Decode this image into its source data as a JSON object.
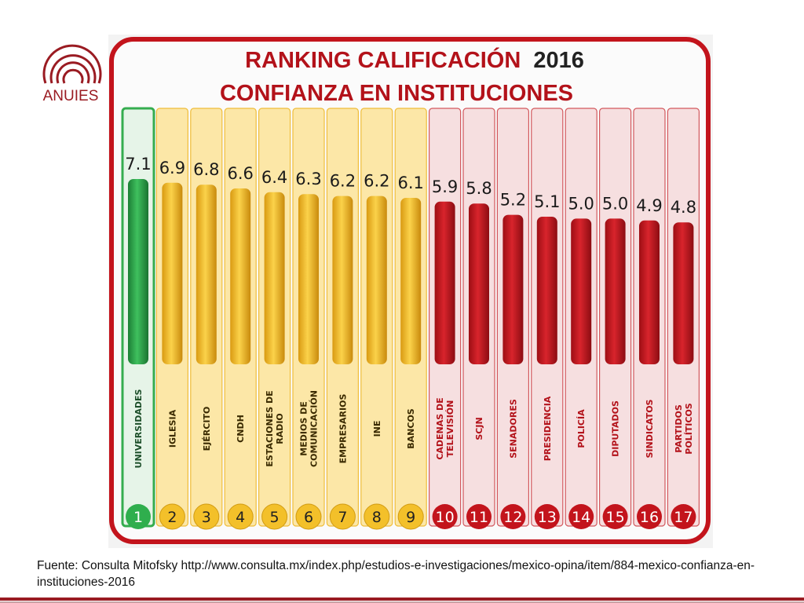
{
  "logo": {
    "text": "ANUIES",
    "color": "#9a1b22"
  },
  "source_text": "Fuente: Consulta Mitofsky http://www.consulta.mx/index.php/estudios-e-investigaciones/mexico-opina/item/884-mexico-confianza-en-instituciones-2016",
  "colors": {
    "green": "#2fae4d",
    "yellow": "#f3c02a",
    "red": "#c3141c",
    "frame": "#c3141c"
  },
  "chart_data": {
    "type": "bar",
    "title_line1": "RANKING CALIFICACIÓN",
    "title_year": "2016",
    "title_line2": "CONFIANZA EN INSTITUCIONES",
    "categories": [
      [
        "UNIVERSIDADES"
      ],
      [
        "IGLESIA"
      ],
      [
        "EJÉRCITO"
      ],
      [
        "CNDH"
      ],
      [
        "ESTACIONES DE",
        "RADIO"
      ],
      [
        "MEDIOS DE",
        "COMUNICACIÓN"
      ],
      [
        "EMPRESARIOS"
      ],
      [
        "INE"
      ],
      [
        "BANCOS"
      ],
      [
        "CADENAS DE",
        "TELEVISIÓN"
      ],
      [
        "SCJN"
      ],
      [
        "SENADORES"
      ],
      [
        "PRESIDENCIA"
      ],
      [
        "POLICÍA"
      ],
      [
        "DIPUTADOS"
      ],
      [
        "SINDICATOS"
      ],
      [
        "PARTIDOS",
        "POLÍTICOS"
      ]
    ],
    "values": [
      7.1,
      6.9,
      6.8,
      6.6,
      6.4,
      6.3,
      6.2,
      6.2,
      6.1,
      5.9,
      5.8,
      5.2,
      5.1,
      5.0,
      5.0,
      4.9,
      4.8
    ],
    "value_labels": [
      "7.1",
      "6.9",
      "6.8",
      "6.6",
      "6.4",
      "6.3",
      "6.2",
      "6.2",
      "6.1",
      "5.9",
      "5.8",
      "5.2",
      "5.1",
      "5.0",
      "5.0",
      "4.9",
      "4.8"
    ],
    "ranks": [
      "1",
      "2",
      "3",
      "4",
      "5",
      "6",
      "7",
      "8",
      "9",
      "10",
      "11",
      "12",
      "13",
      "14",
      "15",
      "16",
      "17"
    ],
    "groups": [
      "green",
      "yellow",
      "yellow",
      "yellow",
      "yellow",
      "yellow",
      "yellow",
      "yellow",
      "yellow",
      "red",
      "red",
      "red",
      "red",
      "red",
      "red",
      "red",
      "red"
    ]
  }
}
